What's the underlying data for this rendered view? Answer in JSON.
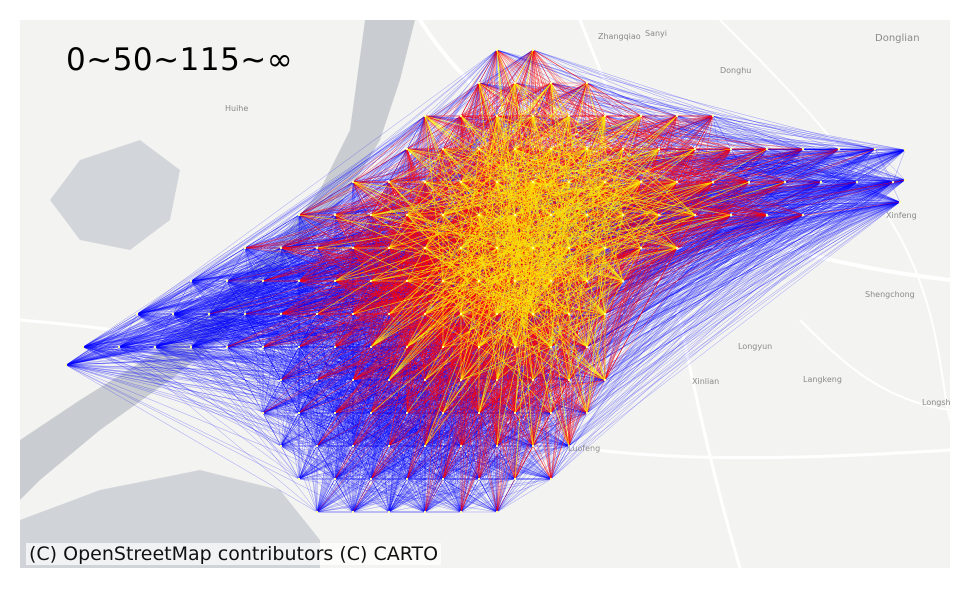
{
  "legend": {
    "text": "0~50~115~∞",
    "bins": [
      "0",
      "50",
      "115",
      "∞"
    ],
    "colors": [
      "#0000ff",
      "#ff0000",
      "#ffff00"
    ]
  },
  "attribution": "(C) OpenStreetMap contributors (C) CARTO",
  "basemap": {
    "land": "#f3f3f1",
    "water": "#c9ccd0",
    "roads": "#ffffff",
    "places": [
      {
        "name": "Zhangqiao"
      },
      {
        "name": "Sanyi"
      },
      {
        "name": "Donglian"
      },
      {
        "name": "Donghu"
      },
      {
        "name": "Huihe"
      },
      {
        "name": "Xinfeng"
      },
      {
        "name": "Shengchong"
      },
      {
        "name": "Longyun"
      },
      {
        "name": "Xinlian"
      },
      {
        "name": "Langkeng"
      },
      {
        "name": "Longshu"
      },
      {
        "name": "Luofeng"
      }
    ]
  }
}
